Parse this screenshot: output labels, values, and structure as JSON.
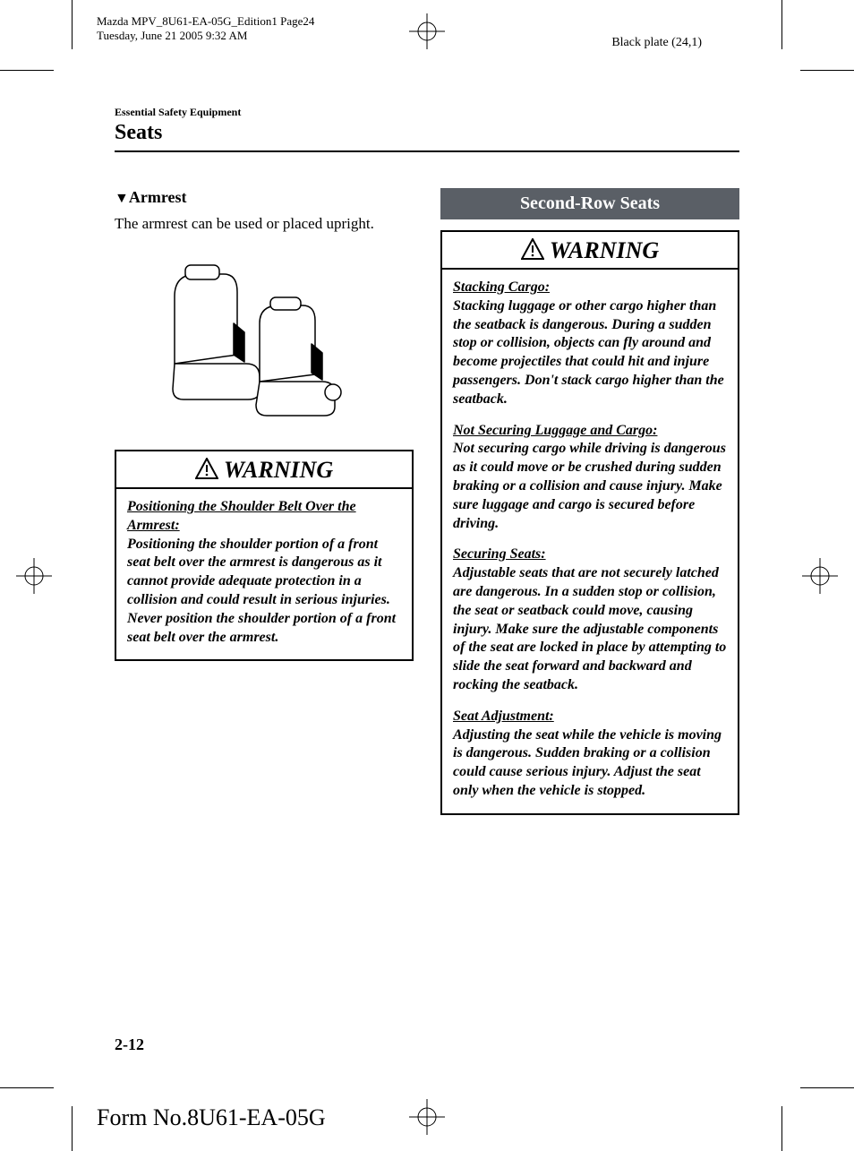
{
  "meta": {
    "doc_line1": "Mazda MPV_8U61-EA-05G_Edition1 Page24",
    "doc_line2": "Tuesday, June 21 2005 9:32 AM",
    "black_plate": "Black plate (24,1)",
    "form_no": "Form No.8U61-EA-05G"
  },
  "running_head": {
    "small": "Essential Safety Equipment",
    "large": "Seats"
  },
  "left": {
    "subhead": "Armrest",
    "body": "The armrest can be used or placed upright.",
    "warning_label": "WARNING",
    "warning_title": "Positioning the Shoulder Belt Over the Armrest:",
    "warning_text": "Positioning the shoulder portion of a front seat belt over the armrest is dangerous as it cannot provide adequate protection in a collision and could result in serious injuries. Never position the shoulder portion of a front seat belt over the armrest."
  },
  "right": {
    "section_bar": "Second-Row Seats",
    "warning_label": "WARNING",
    "items": [
      {
        "title": "Stacking Cargo:",
        "text": "Stacking luggage or other cargo higher than the seatback is dangerous. During a sudden stop or collision, objects can fly around and become projectiles that could hit and injure passengers. Don't stack cargo higher than the seatback."
      },
      {
        "title": "Not Securing Luggage and Cargo:",
        "text": "Not securing cargo while driving is dangerous as it could move or be crushed during sudden braking or a collision and cause injury. Make sure luggage and cargo is secured before driving."
      },
      {
        "title": "Securing Seats:",
        "text": "Adjustable seats that are not securely latched are dangerous. In a sudden stop or collision, the seat or seatback could move, causing injury. Make sure the adjustable components of the seat are locked in place by attempting to slide the seat forward and backward and rocking the seatback."
      },
      {
        "title": "Seat Adjustment:",
        "text": "Adjusting the seat while the vehicle is moving is dangerous. Sudden braking or a collision could cause serious injury. Adjust the seat only when the vehicle is stopped."
      }
    ]
  },
  "page_num": "2-12",
  "colors": {
    "section_bar_bg": "#5a5f66",
    "section_bar_fg": "#ffffff",
    "text": "#000000",
    "bg": "#ffffff"
  },
  "illustration": {
    "type": "line-drawing",
    "subject": "two-front-seats-with-armrest-motion-arrows",
    "stroke": "#000000",
    "fill": "#ffffff"
  }
}
